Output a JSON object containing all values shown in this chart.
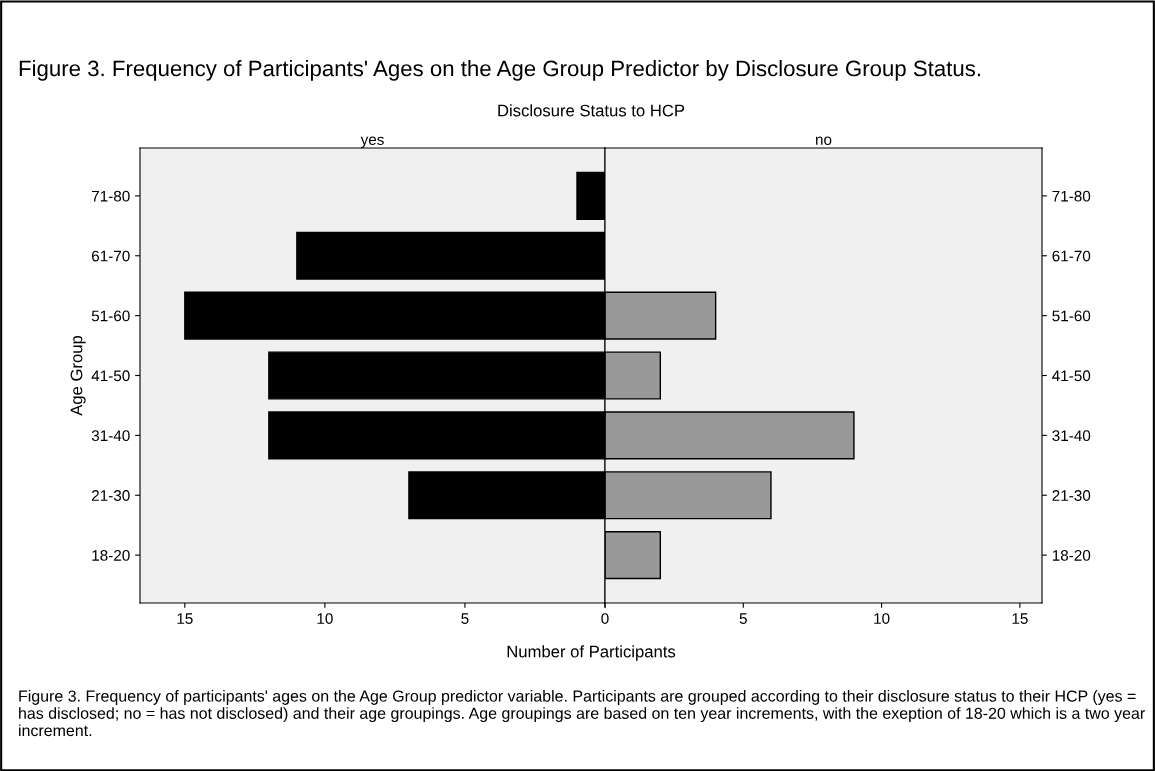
{
  "chart_data": [
    {
      "type": "bar",
      "orientation": "horizontal",
      "title": "yes",
      "subtitle": "Disclosure Status to HCP",
      "xlabel": "Number of Participants",
      "ylabel": "Age Group",
      "categories": [
        "71-80",
        "61-70",
        "51-60",
        "41-50",
        "31-40",
        "21-30",
        "18-20"
      ],
      "series": [
        {
          "color": "#000000",
          "values": [
            1,
            11,
            15,
            12,
            12,
            7,
            null
          ]
        }
      ],
      "xlim": [
        16.6,
        0
      ],
      "xticks": [
        15,
        10,
        5,
        0
      ],
      "grid": false,
      "legend": false,
      "annotations": [
        "Figure 3. Frequency of Participants' Ages on the Age Group Predictor by Disclosure Group Status.",
        "Figure 3. Frequency of participants' ages on the Age Group predictor variable. Participants are grouped according to their disclosure status to their HCP (yes = has disclosed; no = has not disclosed) and their age groupings. Age groupings are based on ten year increments, with the exeption of 18-20 which is a two year increment."
      ]
    },
    {
      "type": "bar",
      "orientation": "horizontal",
      "title": "no",
      "categories": [
        "71-80",
        "61-70",
        "51-60",
        "41-50",
        "31-40",
        "21-30",
        "18-20"
      ],
      "series": [
        {
          "color": "#999999",
          "values": [
            null,
            null,
            4,
            2,
            9,
            6,
            2
          ]
        }
      ],
      "xlim": [
        0,
        15.8
      ],
      "xticks": [
        {
          "value": 0,
          "label": null
        },
        5,
        10,
        15
      ],
      "grid": false,
      "legend": false
    }
  ]
}
